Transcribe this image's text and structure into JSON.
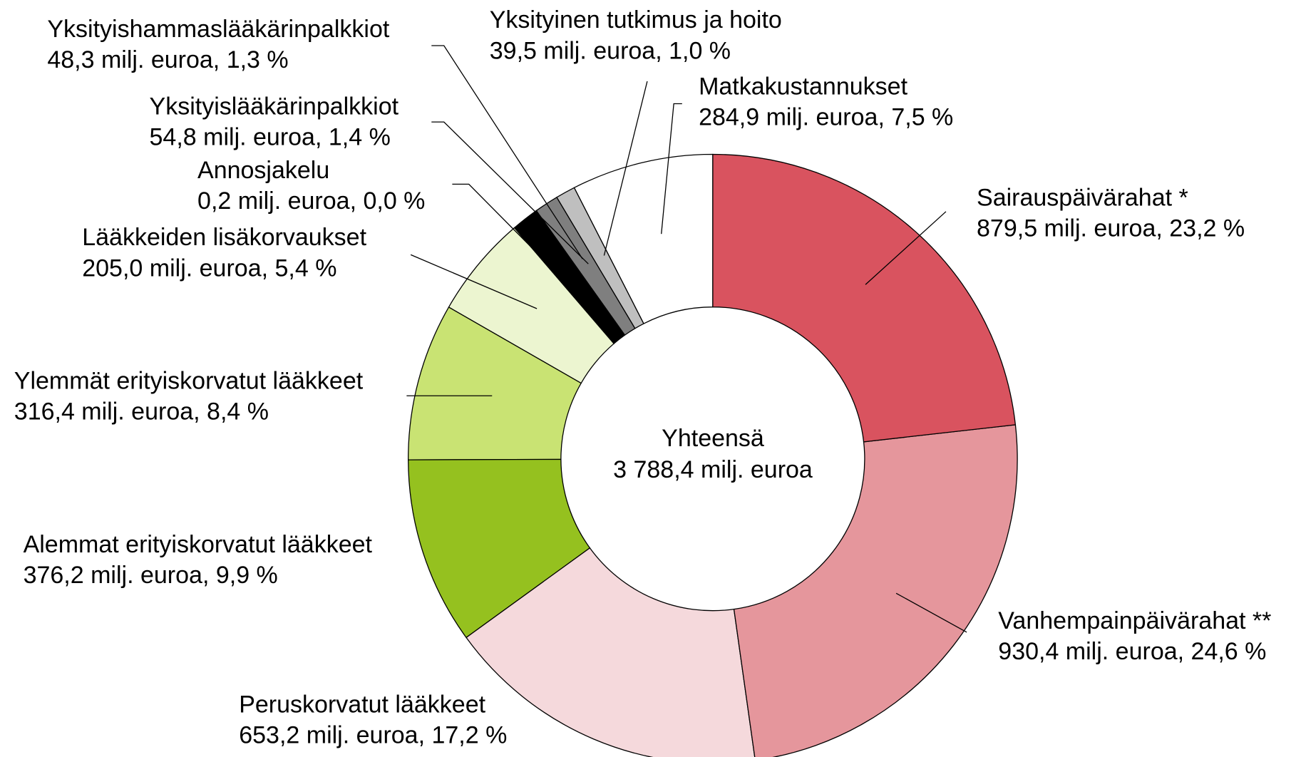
{
  "chart_data": {
    "type": "donut",
    "categories": [
      "Sairauspäivärahat *",
      "Vanhempainpäivärahat **",
      "Peruskorvatut lääkkeet",
      "Alemmat erityiskorvatut lääkkeet",
      "Ylemmät erityiskorvatut lääkkeet",
      "Lääkkeiden lisäkorvaukset",
      "Annosjakelu",
      "Yksityislääkärinpalkkiot",
      "Yksityishammaslääkärinpalkkiot",
      "Yksityinen tutkimus ja hoito",
      "Matkakustannukset"
    ],
    "values": [
      879.5,
      930.4,
      653.2,
      376.2,
      316.4,
      205.0,
      0.2,
      54.8,
      48.3,
      39.5,
      284.9
    ],
    "value_labels": [
      "879,5 milj. euroa, 23,2 %",
      "930,4 milj. euroa, 24,6 %",
      "653,2 milj. euroa, 17,2 %",
      "376,2 milj. euroa, 9,9 %",
      "316,4 milj. euroa, 8,4 %",
      "205,0 milj. euroa, 5,4 %",
      "0,2 milj. euroa, 0,0 %",
      "54,8 milj. euroa, 1,4 %",
      "48,3 milj. euroa, 1,3 %",
      "39,5 milj. euroa, 1,0 %",
      "284,9 milj. euroa, 7,5 %"
    ],
    "colors": [
      "#d9535f",
      "#e5969c",
      "#f5d9dc",
      "#95c11f",
      "#c9e373",
      "#ecf5d0",
      "#ffffff",
      "#000000",
      "#7f7f7f",
      "#bfbfbf",
      "#ffffff"
    ],
    "center_text": [
      "Yhteensä",
      "3 788,4 milj. euroa"
    ]
  }
}
